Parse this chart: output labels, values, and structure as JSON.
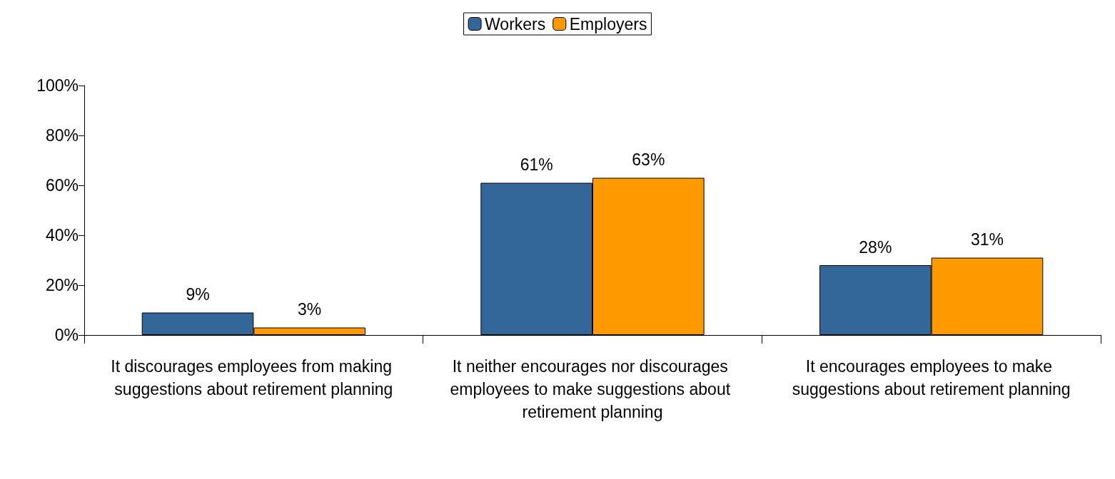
{
  "chart_data": {
    "type": "bar",
    "categories": [
      "It discourages employees from making suggestions about retirement planning",
      "It neither encourages nor discourages employees to make suggestions about retirement planning",
      "It encourages employees to make suggestions about retirement planning"
    ],
    "series": [
      {
        "name": "Workers",
        "color": "#336699",
        "values": [
          9,
          61,
          28
        ],
        "value_labels": [
          "9%",
          "61%",
          "28%"
        ]
      },
      {
        "name": "Employers",
        "color": "#ff9900",
        "values": [
          3,
          63,
          31
        ],
        "value_labels": [
          "3%",
          "63%",
          "31%"
        ]
      }
    ],
    "ylim": [
      0,
      100
    ],
    "yticks": [
      {
        "value": 0,
        "label": "0%"
      },
      {
        "value": 20,
        "label": "20%"
      },
      {
        "value": 40,
        "label": "40%"
      },
      {
        "value": 60,
        "label": "60%"
      },
      {
        "value": 80,
        "label": "80%"
      },
      {
        "value": 100,
        "label": "100%"
      }
    ],
    "grid": false,
    "legend": "top"
  }
}
